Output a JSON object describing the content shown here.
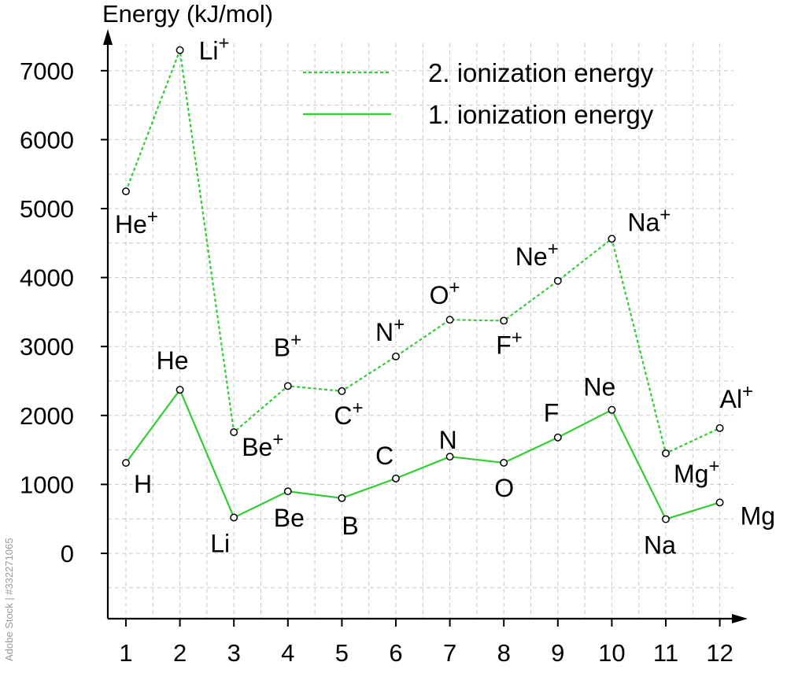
{
  "chart_data": {
    "type": "line",
    "ylabel": "Energy (kJ/mol)",
    "x": [
      1,
      2,
      3,
      4,
      5,
      6,
      7,
      8,
      9,
      10,
      11,
      12
    ],
    "xticks": [
      "1",
      "2",
      "3",
      "4",
      "5",
      "6",
      "7",
      "8",
      "9",
      "10",
      "11",
      "12"
    ],
    "yticks": [
      "0",
      "1000",
      "2000",
      "3000",
      "4000",
      "5000",
      "6000",
      "7000"
    ],
    "ylim": [
      -900,
      7800
    ],
    "xlim": [
      0.6,
      12.6
    ],
    "grid": true,
    "legend_placement": "top-right",
    "series": [
      {
        "name": "2. ionization energy",
        "style": "dashed",
        "color": "#33cc33",
        "values": [
          5250,
          7298,
          1757,
          2427,
          2353,
          2856,
          3388,
          3374,
          3952,
          4562,
          1451,
          1817
        ],
        "point_labels": [
          "He+",
          "Li+",
          "Be+",
          "B+",
          "C+",
          "N+",
          "O+",
          "F+",
          "Ne+",
          "Na+",
          "Mg+",
          "Al+"
        ]
      },
      {
        "name": "1. ionization energy",
        "style": "solid",
        "color": "#33cc33",
        "values": [
          1312,
          2372,
          520,
          900,
          801,
          1086,
          1402,
          1314,
          1681,
          2081,
          496,
          738
        ],
        "point_labels": [
          "H",
          "He",
          "Li",
          "Be",
          "B",
          "C",
          "N",
          "O",
          "F",
          "Ne",
          "Na",
          "Mg"
        ]
      }
    ]
  },
  "watermark": "Adobe Stock | #332271065"
}
